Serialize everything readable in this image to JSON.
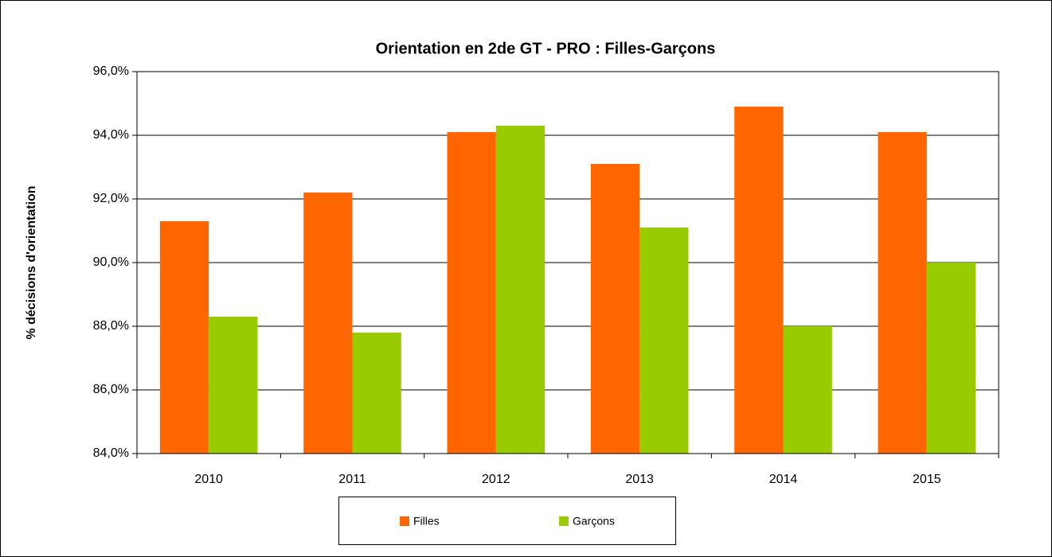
{
  "chart_data": {
    "type": "bar",
    "title": "Orientation en 2de GT - PRO : Filles-Garçons",
    "y_label": "% décisions d'orientation",
    "categories": [
      "2010",
      "2011",
      "2012",
      "2013",
      "2014",
      "2015"
    ],
    "series": [
      {
        "name": "Filles",
        "color": "#ff6600",
        "values": [
          91.3,
          92.2,
          94.1,
          93.1,
          94.9,
          94.1
        ]
      },
      {
        "name": "Garçons",
        "color": "#99cc00",
        "values": [
          88.3,
          87.8,
          94.3,
          91.1,
          88.0,
          90.0
        ]
      }
    ],
    "ylim": [
      84,
      96
    ],
    "yticks": [
      {
        "value": 84,
        "label": "84,0%"
      },
      {
        "value": 86,
        "label": "86,0%"
      },
      {
        "value": 88,
        "label": "88,0%"
      },
      {
        "value": 90,
        "label": "90,0%"
      },
      {
        "value": 92,
        "label": "92,0%"
      },
      {
        "value": 94,
        "label": "94,0%"
      },
      {
        "value": 96,
        "label": "96,0%"
      }
    ],
    "grid": true
  }
}
